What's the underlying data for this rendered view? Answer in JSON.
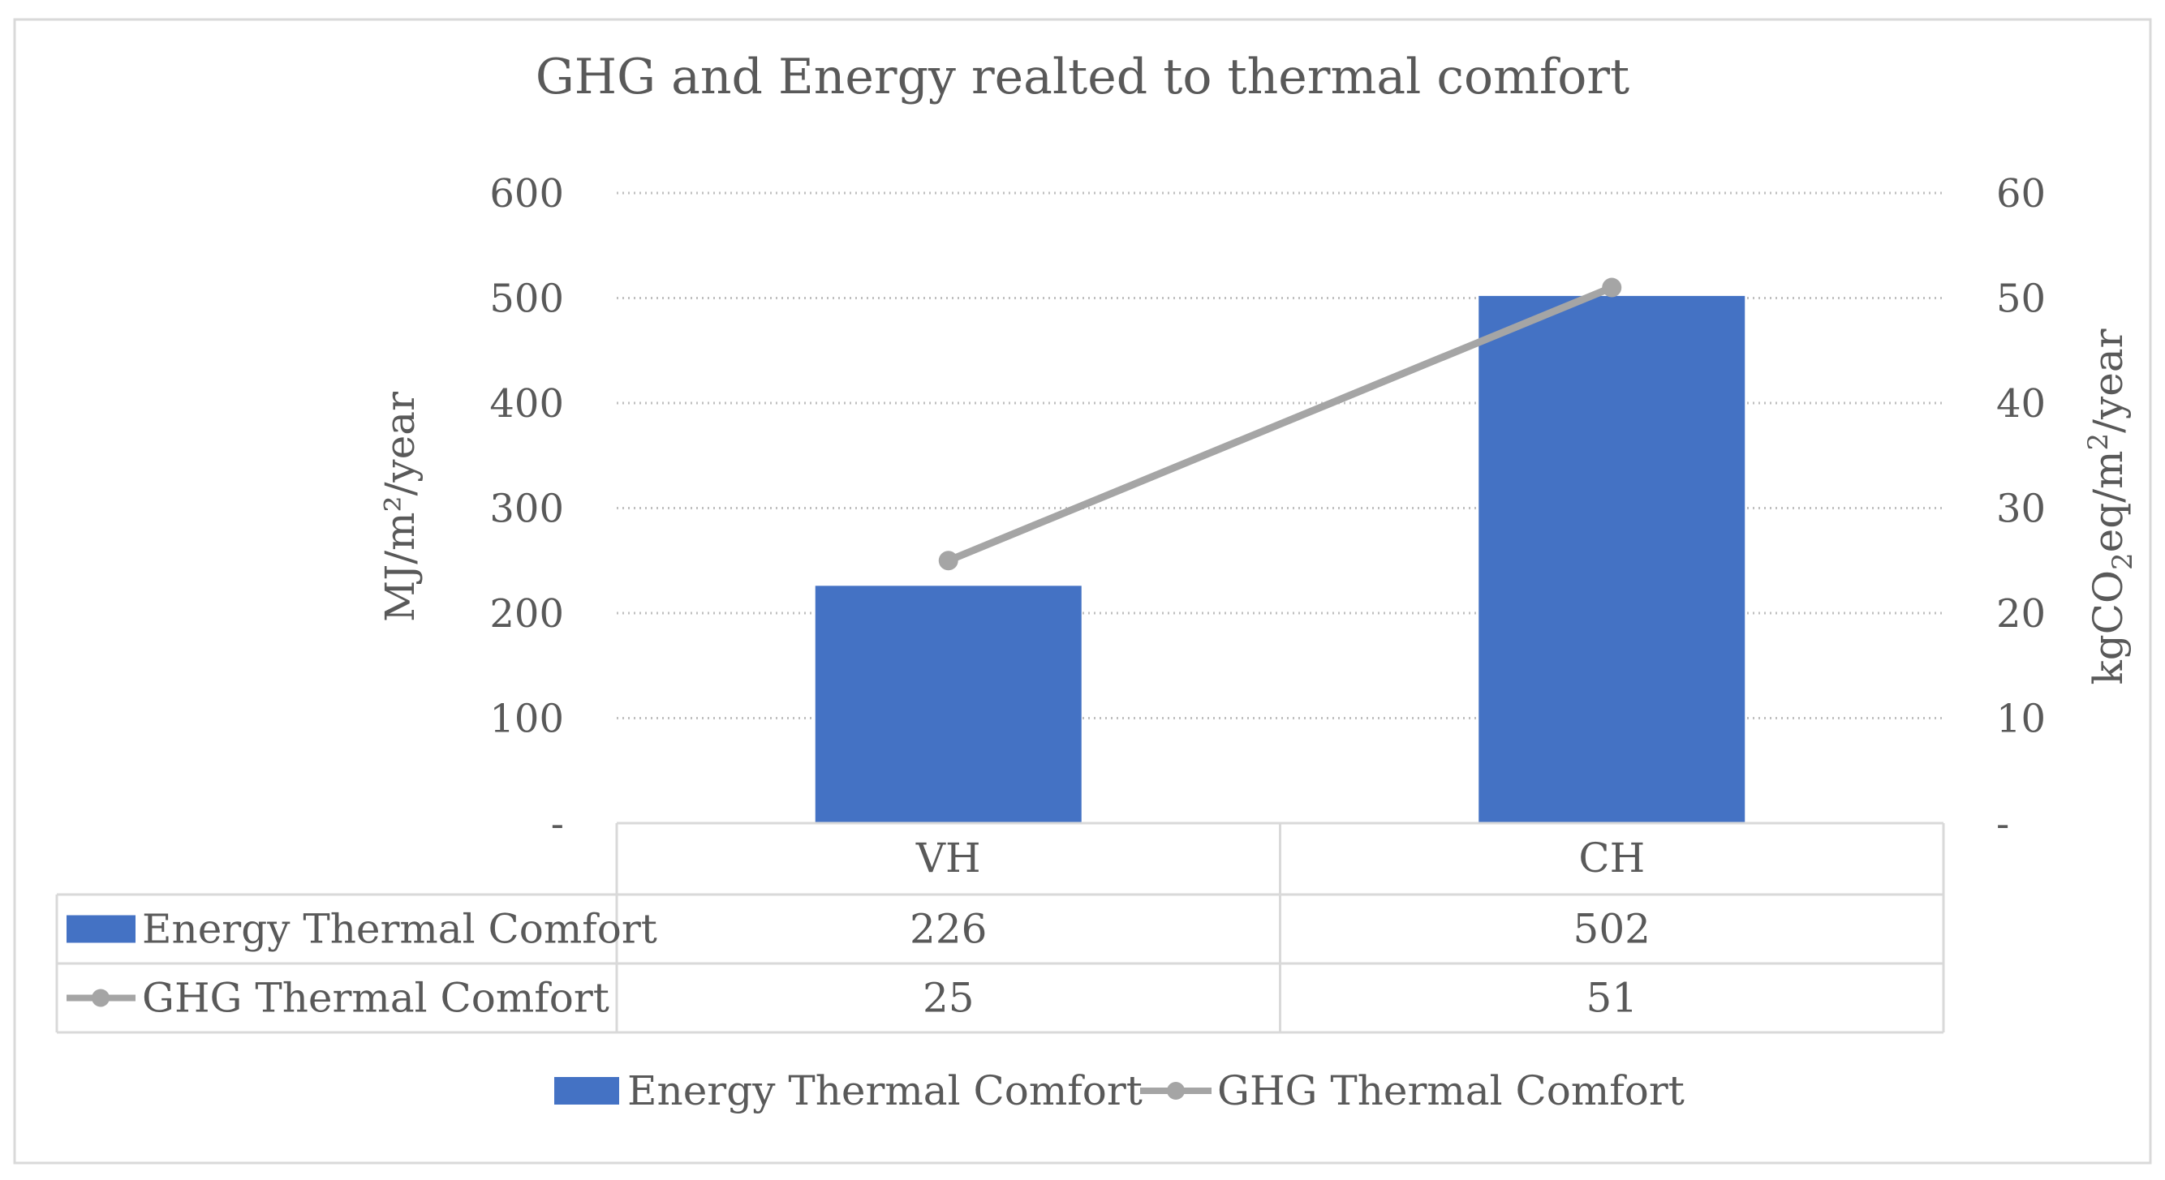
{
  "chart_data": {
    "type": "bar",
    "title": "GHG and Energy realted to thermal comfort",
    "categories": [
      "VH",
      "CH"
    ],
    "y_left": {
      "label": "MJ/m²/year",
      "ticks": [
        600,
        500,
        400,
        300,
        200,
        100
      ],
      "zero_label": "-",
      "range": [
        0,
        600
      ]
    },
    "y_right": {
      "label_parts": [
        "kgCO",
        "2",
        "eq/m",
        "2",
        "/year"
      ],
      "ticks": [
        60,
        50,
        40,
        30,
        20,
        10
      ],
      "zero_label": "-",
      "range": [
        0,
        60
      ]
    },
    "series": [
      {
        "name": "Energy Thermal Comfort",
        "kind": "bar",
        "axis": "left",
        "color": "#4472C4",
        "values": [
          226,
          502
        ]
      },
      {
        "name": "GHG Thermal Comfort",
        "kind": "line",
        "axis": "right",
        "color": "#A5A5A5",
        "values": [
          25,
          51
        ]
      }
    ],
    "data_table": {
      "rows": [
        {
          "series": "Energy Thermal Comfort",
          "cells": [
            "226",
            "502"
          ]
        },
        {
          "series": "GHG Thermal Comfort",
          "cells": [
            "25",
            "51"
          ]
        }
      ]
    },
    "grid": true,
    "legend": "bottom"
  }
}
